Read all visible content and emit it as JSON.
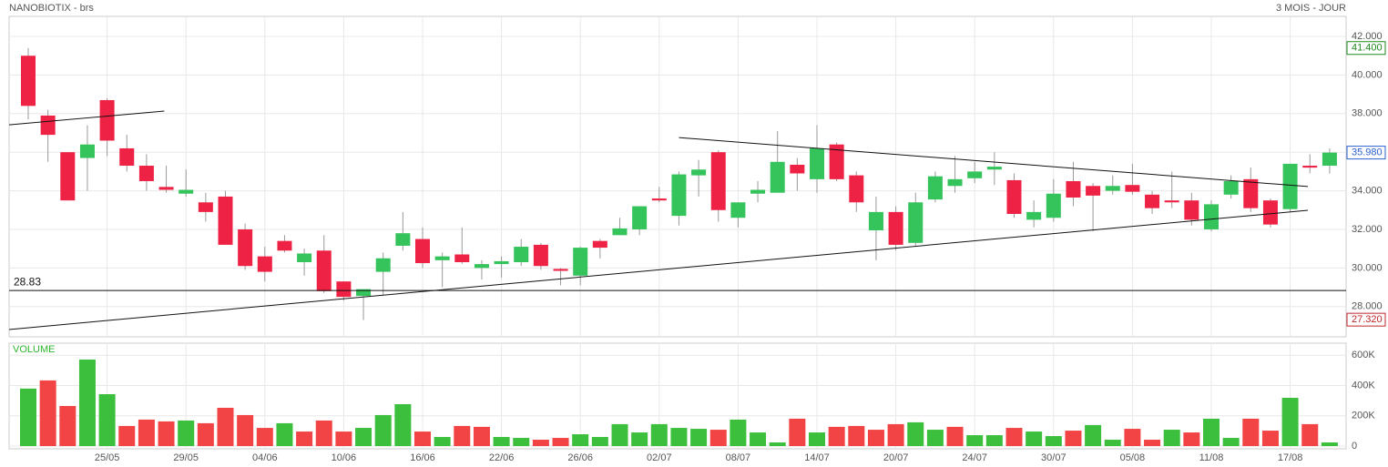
{
  "chart_data": [
    {
      "type": "candlestick",
      "title": "NANOBIOTIX - brs",
      "subtitle": "3 MOIS - JOUR",
      "categories": [
        null,
        null,
        null,
        null,
        "25/05",
        null,
        null,
        null,
        "29/05",
        null,
        null,
        null,
        "04/06",
        null,
        null,
        null,
        "10/06",
        null,
        null,
        null,
        "16/06",
        null,
        null,
        null,
        "22/06",
        null,
        null,
        null,
        "26/06",
        null,
        null,
        null,
        "02/07",
        null,
        null,
        null,
        "08/07",
        null,
        null,
        null,
        "14/07",
        null,
        null,
        null,
        "20/07",
        null,
        null,
        null,
        "24/07",
        null,
        null,
        null,
        "30/07",
        null,
        null,
        null,
        "05/08",
        null,
        null,
        null,
        "11/08",
        null,
        null,
        null,
        "17/08",
        null,
        null
      ],
      "open": [
        41.0,
        37.9,
        36.0,
        35.7,
        38.7,
        36.2,
        35.3,
        34.2,
        33.85,
        33.4,
        33.7,
        32.0,
        30.6,
        31.4,
        30.3,
        30.9,
        29.3,
        28.55,
        29.8,
        31.15,
        31.5,
        30.4,
        30.7,
        30.0,
        30.2,
        30.3,
        31.2,
        29.95,
        29.6,
        31.4,
        31.7,
        32.0,
        33.6,
        32.7,
        34.8,
        36.0,
        32.6,
        33.85,
        33.9,
        35.35,
        34.6,
        36.4,
        34.8,
        31.95,
        32.9,
        31.3,
        33.55,
        34.25,
        34.65,
        35.1,
        34.55,
        32.5,
        32.6,
        34.5,
        34.25,
        34.0,
        34.3,
        33.8,
        33.5,
        33.5,
        32.0,
        33.8,
        34.6,
        33.5,
        33.05,
        35.3,
        35.3
      ],
      "high": [
        41.4,
        38.2,
        36.0,
        37.4,
        38.8,
        36.9,
        35.9,
        35.3,
        35.1,
        33.9,
        34.0,
        32.3,
        31.1,
        31.7,
        31.0,
        31.7,
        29.3,
        28.9,
        30.8,
        32.9,
        32.1,
        30.8,
        32.1,
        30.4,
        30.6,
        31.5,
        31.3,
        30.0,
        31.1,
        31.5,
        32.6,
        33.2,
        34.2,
        35.0,
        35.6,
        36.1,
        33.4,
        34.5,
        37.1,
        35.7,
        37.4,
        36.5,
        35.0,
        33.7,
        33.2,
        33.9,
        35.0,
        35.8,
        35.5,
        36.0,
        34.9,
        33.5,
        34.6,
        35.5,
        34.4,
        34.8,
        35.4,
        34.0,
        35.0,
        33.9,
        33.5,
        34.8,
        35.2,
        33.6,
        35.4,
        35.9,
        36.2
      ],
      "low": [
        37.7,
        35.5,
        33.5,
        34.0,
        35.8,
        35.0,
        34.0,
        33.9,
        33.7,
        32.4,
        31.2,
        29.9,
        29.3,
        30.8,
        29.6,
        28.7,
        28.3,
        27.3,
        28.6,
        30.9,
        30.0,
        29.0,
        30.2,
        29.4,
        29.5,
        30.1,
        29.9,
        29.1,
        29.1,
        30.5,
        31.7,
        31.7,
        33.4,
        32.2,
        33.7,
        32.4,
        32.1,
        33.4,
        33.9,
        34.0,
        33.9,
        34.5,
        32.9,
        30.4,
        30.9,
        31.1,
        33.4,
        33.9,
        34.4,
        34.3,
        32.6,
        32.1,
        32.4,
        33.2,
        31.9,
        33.8,
        33.8,
        32.8,
        33.1,
        32.2,
        31.9,
        33.6,
        32.9,
        32.1,
        32.9,
        34.9,
        34.9
      ],
      "close": [
        38.4,
        36.9,
        33.5,
        36.4,
        36.6,
        35.3,
        34.5,
        34.05,
        34.05,
        32.9,
        31.2,
        30.1,
        29.8,
        30.9,
        30.75,
        28.8,
        28.5,
        28.9,
        30.5,
        31.8,
        30.25,
        30.6,
        30.3,
        30.2,
        30.35,
        31.1,
        30.1,
        29.85,
        31.05,
        31.05,
        32.05,
        33.2,
        33.5,
        34.85,
        35.1,
        33.0,
        33.4,
        34.05,
        35.5,
        34.9,
        36.2,
        34.6,
        33.4,
        32.9,
        31.2,
        33.4,
        34.75,
        34.6,
        35.0,
        35.25,
        32.8,
        32.9,
        33.85,
        33.65,
        33.75,
        34.25,
        33.95,
        33.1,
        33.4,
        32.5,
        33.3,
        34.5,
        33.1,
        32.25,
        35.4,
        35.2,
        35.98
      ],
      "up_color": "#35c35c",
      "down_color": "#ee2244",
      "ylim": [
        26.43,
        43.04
      ],
      "yticks": [
        {
          "value": 28,
          "label": "28.000"
        },
        {
          "value": 30,
          "label": "30.000"
        },
        {
          "value": 32,
          "label": "32.000"
        },
        {
          "value": 34,
          "label": "34.000"
        },
        {
          "value": 36,
          "label": "36.000"
        },
        {
          "value": 38,
          "label": "38.000"
        },
        {
          "value": 40,
          "label": "40.000"
        },
        {
          "value": 42,
          "label": "42.000"
        }
      ],
      "grid": true,
      "price_labels": [
        {
          "value": 41.4,
          "label": "41.400",
          "color": "#1f8a1f"
        },
        {
          "value": 35.98,
          "label": "35.980",
          "color": "#2a5fd0"
        },
        {
          "value": 27.32,
          "label": "27.320",
          "color": "#c0262a"
        }
      ],
      "hline": {
        "value": 28.83,
        "label": "28.83"
      },
      "trendlines": [
        {
          "x": [
            -0.97,
            6.9
          ],
          "y": [
            37.42,
            38.13
          ]
        },
        {
          "x": [
            33,
            64.9
          ],
          "y": [
            36.76,
            34.22
          ]
        },
        {
          "x": [
            -0.97,
            64.9
          ],
          "y": [
            26.81,
            32.99
          ]
        }
      ]
    },
    {
      "type": "bar",
      "title": "VOLUME",
      "values": [
        380000,
        434000,
        265000,
        572000,
        343000,
        133000,
        175000,
        163000,
        169000,
        151000,
        253000,
        205000,
        120000,
        151000,
        96000,
        169000,
        96000,
        120000,
        205000,
        277000,
        96000,
        60000,
        133000,
        127000,
        60000,
        54000,
        42000,
        54000,
        78000,
        60000,
        145000,
        90000,
        145000,
        120000,
        114000,
        108000,
        175000,
        90000,
        24000,
        181000,
        90000,
        127000,
        133000,
        108000,
        145000,
        157000,
        108000,
        127000,
        72000,
        72000,
        120000,
        96000,
        66000,
        102000,
        139000,
        42000,
        114000,
        42000,
        108000,
        90000,
        181000,
        54000,
        181000,
        102000,
        319000,
        145000,
        24000
      ],
      "up_color": "#3cbf3c",
      "down_color": "#f24444",
      "ylim": [
        -18000,
        680000
      ],
      "yticks": [
        0,
        {
          "value": 200000,
          "label": "200K"
        },
        {
          "value": 400000,
          "label": "400K"
        },
        {
          "value": 600000,
          "label": "600K"
        }
      ],
      "grid": true
    }
  ]
}
